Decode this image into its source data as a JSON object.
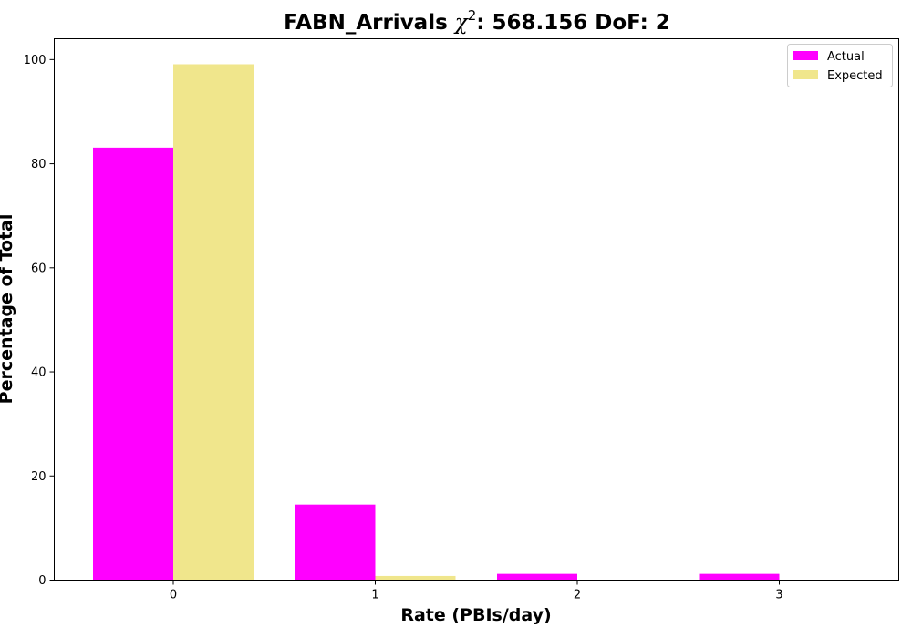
{
  "chart_data": {
    "type": "bar",
    "title_prefix": "FABN_Arrivals ",
    "title_chi": "χ",
    "title_sup": "2",
    "title_suffix": ": 568.156 DoF: 2",
    "xlabel": "Rate (PBIs/day)",
    "ylabel": "Percentage of Total",
    "categories": [
      "0",
      "1",
      "2",
      "3"
    ],
    "series": [
      {
        "name": "Actual",
        "color": "#ff00ff",
        "values": [
          83.1,
          14.5,
          1.2,
          1.2
        ]
      },
      {
        "name": "Expected",
        "color": "#f0e68c",
        "values": [
          99.1,
          0.8,
          0.0,
          0.0
        ]
      }
    ],
    "ylim": [
      0,
      104
    ],
    "yticks": [
      0,
      20,
      40,
      60,
      80,
      100
    ],
    "grid": false,
    "legend_position": "top-right"
  }
}
